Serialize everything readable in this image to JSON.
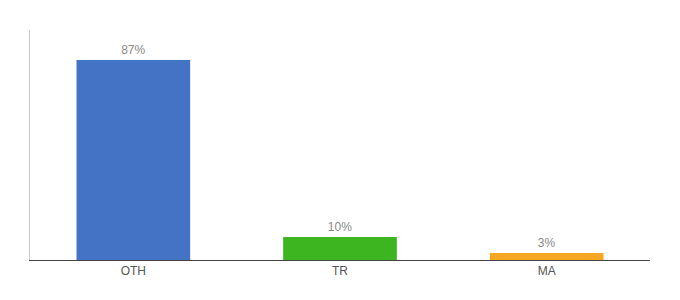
{
  "chart_data": {
    "type": "bar",
    "categories": [
      "OTH",
      "TR",
      "MA"
    ],
    "values": [
      87,
      10,
      3
    ],
    "value_labels": [
      "87%",
      "10%",
      "3%"
    ],
    "colors": [
      "#4472c4",
      "#3cb521",
      "#f5a623"
    ],
    "ylim": [
      0,
      100
    ],
    "data_labels": true,
    "tick_labels": "x",
    "grid": false
  }
}
